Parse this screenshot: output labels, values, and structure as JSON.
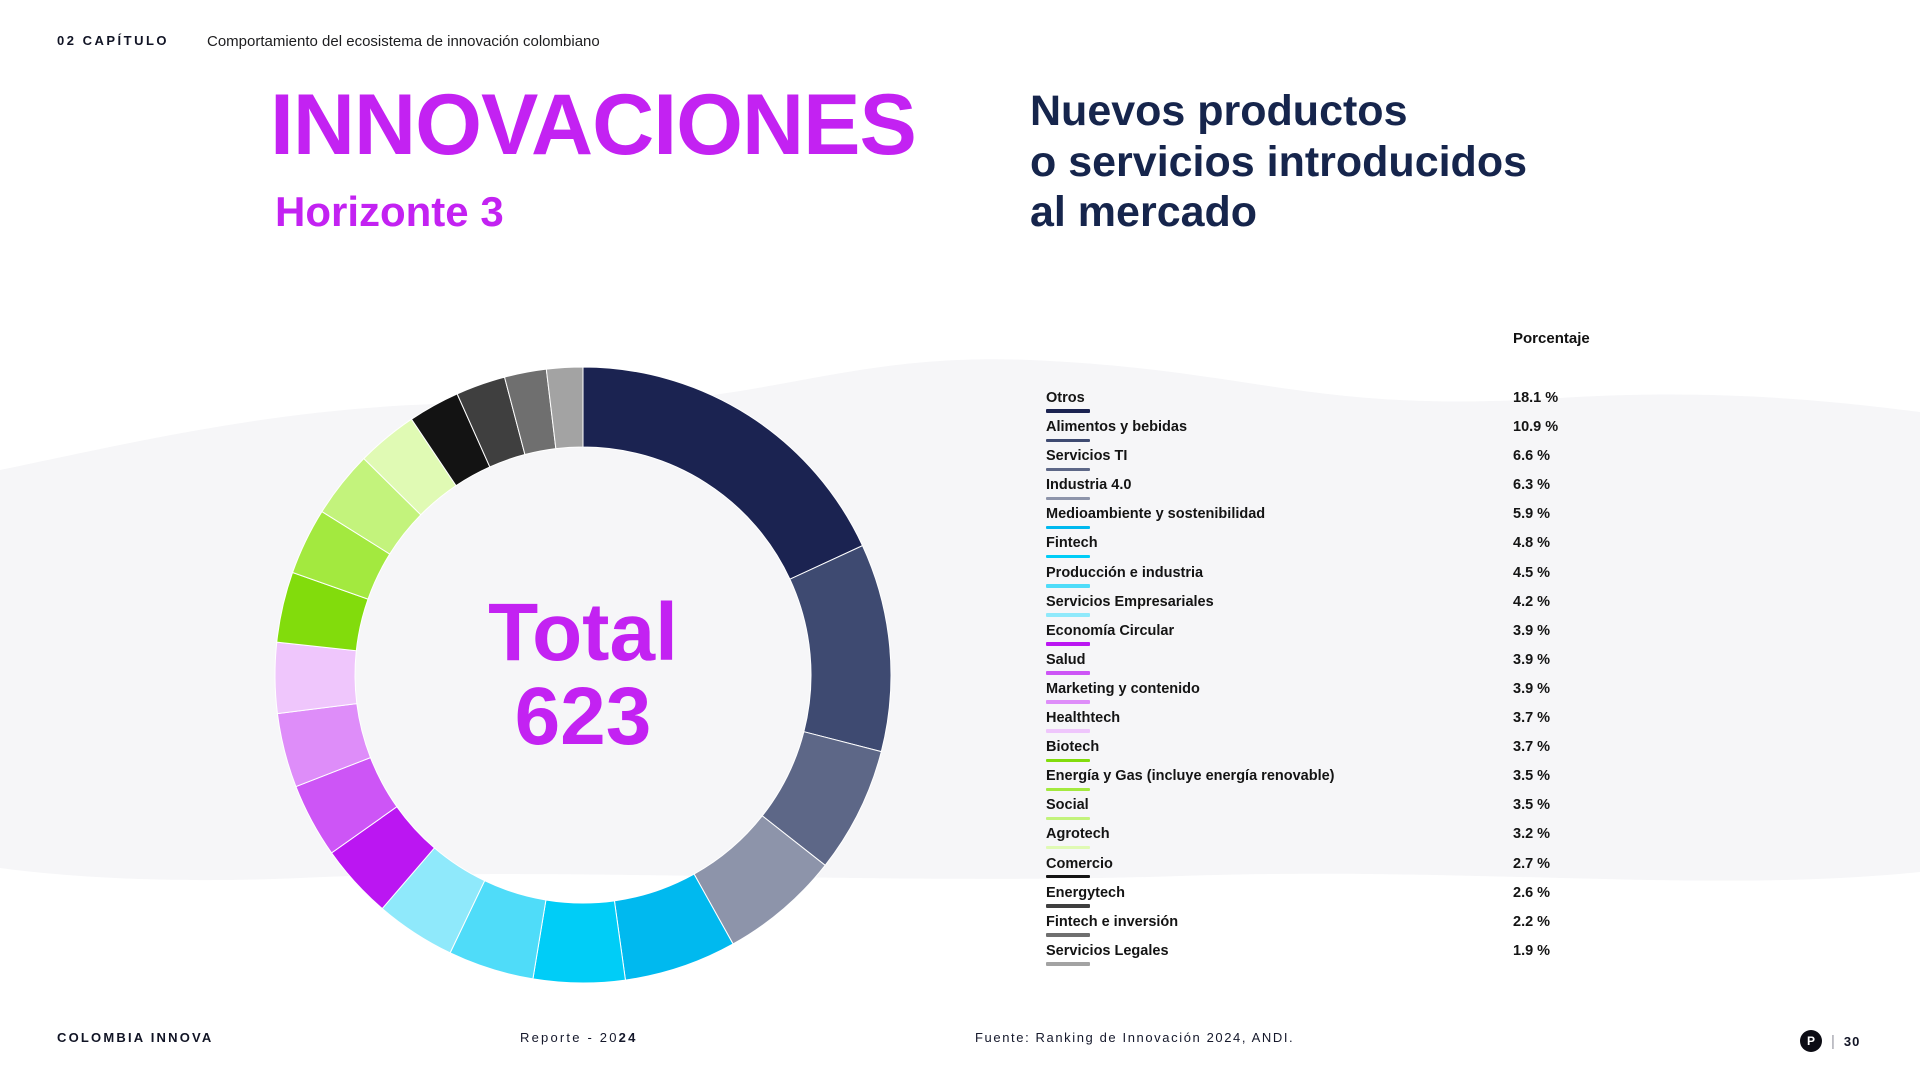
{
  "header": {
    "chapter": "02 CAPÍTULO",
    "subtitle": "Comportamiento del ecosistema de innovación colombiano"
  },
  "title": {
    "main": "INNOVACIONES",
    "sub": "Horizonte 3"
  },
  "heading": {
    "line1": "Nuevos productos",
    "line2": "o servicios introducidos",
    "line3": "al mercado"
  },
  "table": {
    "value_header": "Porcentaje"
  },
  "donut": {
    "center_label": "Total",
    "center_value": "623"
  },
  "chart_data": {
    "type": "pie",
    "title": "Nuevos productos o servicios introducidos al mercado",
    "total_label": "Total",
    "total": 623,
    "unit": "%",
    "legend_position": "right",
    "start_angle_deg": 0,
    "direction": "clockwise",
    "categories": [
      "Otros",
      "Alimentos y bebidas",
      "Servicios TI",
      "Industria 4.0",
      "Medioambiente y sostenibilidad",
      "Fintech",
      "Producción e industria",
      "Servicios Empresariales",
      "Economía Circular",
      "Salud",
      "Marketing y contenido",
      "Healthtech",
      "Biotech",
      "Energía y Gas (incluye energía renovable)",
      "Social",
      "Agrotech",
      "Comercio",
      "Energytech",
      "Fintech e inversión",
      "Servicios Legales"
    ],
    "values": [
      18.1,
      10.9,
      6.6,
      6.3,
      5.9,
      4.8,
      4.5,
      4.2,
      3.9,
      3.9,
      3.9,
      3.7,
      3.7,
      3.5,
      3.5,
      3.2,
      2.7,
      2.6,
      2.2,
      1.9
    ],
    "colors": [
      "#1b2351",
      "#3e4a71",
      "#5d6787",
      "#8d94aa",
      "#00b9ef",
      "#00cdf7",
      "#4fdcf9",
      "#8fe9fb",
      "#bb16f2",
      "#cd55f6",
      "#de8df9",
      "#efc6fc",
      "#82dc0c",
      "#a3e93f",
      "#c3f37c",
      "#e0fab4",
      "#131313",
      "#3f3f3f",
      "#6f6f6f",
      "#a3a3a3"
    ]
  },
  "footer": {
    "brand": "COLOMBIA INNOVA",
    "report_prefix": "Reporte - 20",
    "report_bold": "24",
    "source": "Fuente: Ranking de Innovación 2024, ANDI.",
    "logo_letter": "P",
    "separator": "|",
    "page_number": "30"
  },
  "colors": {
    "accent_magenta": "#c322f2",
    "navy": "#16254c",
    "background": "#ffffff",
    "wave": "#f6f6f8"
  }
}
